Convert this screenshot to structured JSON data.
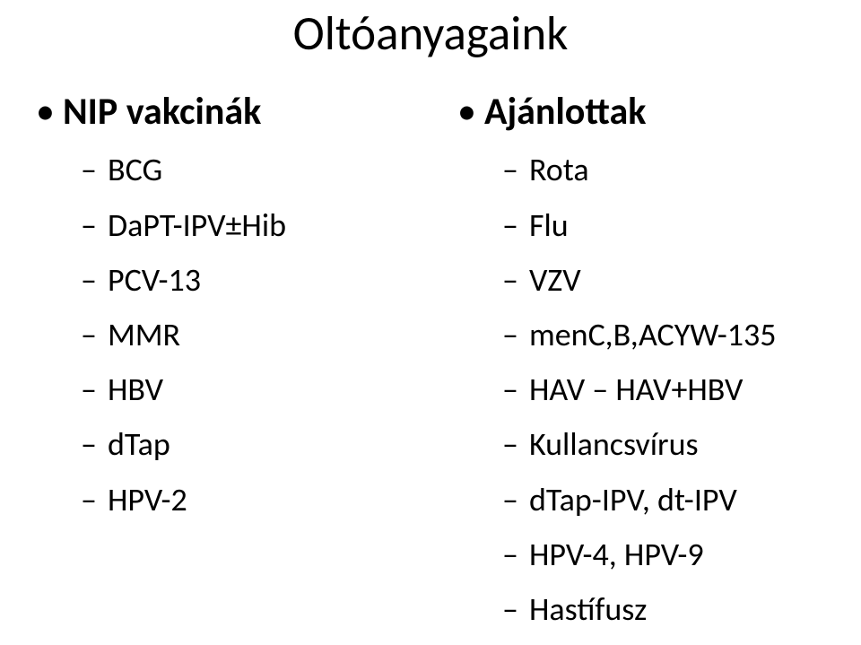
{
  "title": "Oltóanyagaink",
  "left": {
    "heading": "NIP vakcinák",
    "items": [
      "BCG",
      "DaPT-IPV±Hib",
      "PCV-13",
      "MMR",
      "HBV",
      "dTap",
      "HPV-2"
    ]
  },
  "right": {
    "heading": "Ajánlottak",
    "items": [
      "Rota",
      "Flu",
      "VZV",
      "menC,B,ACYW-135",
      "HAV – HAV+HBV",
      "Kullancsvírus",
      "dTap-IPV, dt-IPV",
      "HPV-4, HPV-9",
      "Hastífusz"
    ]
  },
  "bullets": {
    "level1": "•",
    "level2": "–"
  }
}
